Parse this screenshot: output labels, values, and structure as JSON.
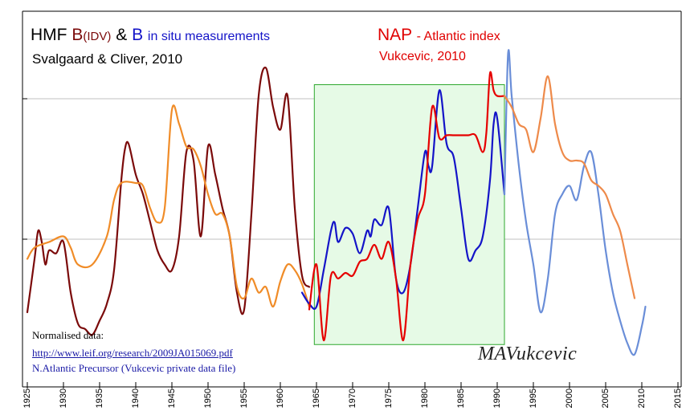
{
  "title": {
    "hmf": "HMF",
    "b_idv_prefix": "B",
    "b_idv_sub": "(IDV)",
    "amp": "&",
    "b": "B",
    "in_situ": "in situ measurements",
    "credit_left": "Svalgaard & Cliver, 2010",
    "nap": "NAP",
    "nap_suffix": "- Atlantic index",
    "credit_right": "Vukcevic, 2010"
  },
  "notes": {
    "line1": "Normalised data:",
    "line2": "http://www.leif.org/research/2009JA015069.pdf",
    "line3": "N.Atlantic Precursor (Vukcevic private data file)"
  },
  "signature": "MAVukcevic",
  "colors": {
    "hmf_idv": "#7b0a0a",
    "nap_early": "#f08c28",
    "nap_late": "#ee8a4a",
    "nap_window": "#e60000",
    "b_insitu": "#1414c8",
    "b_late": "#6a8ed8",
    "window_fill": "#e6fae6",
    "window_border": "#2ea82e",
    "gridline": "#c0c0c0"
  },
  "chart_data": {
    "type": "line",
    "xlim": [
      1925,
      2015
    ],
    "ylim": [
      0,
      100
    ],
    "x_ticks": [
      "1925",
      "1930",
      "1935",
      "1940",
      "1945",
      "1950",
      "1955",
      "1960",
      "1965",
      "1970",
      "1975",
      "1980",
      "1985",
      "1990",
      "1995",
      "2000",
      "2005",
      "2010",
      "2015"
    ],
    "gridlines_y": [
      79,
      29
    ],
    "grid": "horizontal",
    "highlight_window": {
      "x": [
        1964.7,
        1991.0
      ],
      "y": [
        -8.5,
        84
      ]
    },
    "series": [
      {
        "key": "hmf_idv",
        "x": [
          1925,
          1926,
          1926.5,
          1927,
          1927.5,
          1928,
          1929,
          1930,
          1931,
          1932,
          1933,
          1934,
          1935,
          1936,
          1937,
          1938,
          1938.5,
          1939,
          1940,
          1941,
          1942,
          1943,
          1944,
          1945,
          1946,
          1947,
          1948,
          1949,
          1950,
          1951,
          1952,
          1953,
          1954,
          1955,
          1956,
          1957,
          1958,
          1959,
          1960,
          1961,
          1962,
          1963,
          1964
        ],
        "y": [
          3,
          22,
          32,
          28,
          20,
          25,
          24,
          28,
          10,
          -1,
          -3,
          -5,
          0,
          6,
          18,
          50,
          61,
          63,
          52,
          45,
          35,
          25,
          20,
          18,
          30,
          60,
          57,
          30,
          62,
          52,
          40,
          30,
          10,
          4,
          38,
          80,
          90,
          76,
          68,
          80,
          40,
          16,
          12
        ]
      },
      {
        "key": "nap_early",
        "x": [
          1925,
          1926,
          1928,
          1930,
          1931,
          1932,
          1934,
          1936,
          1937,
          1938,
          1940,
          1941,
          1942,
          1943,
          1944,
          1945,
          1946,
          1947,
          1948,
          1949,
          1950,
          1951,
          1952,
          1953,
          1954,
          1955,
          1956,
          1957,
          1958,
          1959,
          1960,
          1961,
          1962,
          1963,
          1964
        ],
        "y": [
          22,
          26,
          28,
          30,
          26,
          20,
          20,
          30,
          43,
          49,
          49,
          48,
          40,
          35,
          40,
          75,
          70,
          62,
          61,
          55,
          45,
          38,
          38,
          30,
          12,
          8,
          15,
          10,
          12,
          5,
          14,
          20,
          18,
          13,
          5
        ]
      },
      {
        "key": "b_insitu",
        "x": [
          1963,
          1964,
          1965,
          1966,
          1967,
          1967.5,
          1968,
          1969,
          1970,
          1971,
          1972,
          1972.5,
          1973,
          1974,
          1975,
          1976,
          1977,
          1978,
          1979,
          1980,
          1980.5,
          1981,
          1982,
          1983,
          1984,
          1985,
          1986,
          1987,
          1988,
          1989,
          1989.5,
          1990,
          1991
        ],
        "y": [
          10,
          6,
          5,
          18,
          32,
          35,
          28,
          33,
          31,
          24,
          32,
          30,
          36,
          34,
          40,
          15,
          10,
          20,
          40,
          60,
          55,
          55,
          82,
          63,
          58,
          40,
          22,
          25,
          30,
          50,
          70,
          72,
          45
        ]
      },
      {
        "key": "nap_window",
        "x": [
          1964,
          1965,
          1966,
          1967,
          1968,
          1969,
          1970,
          1971,
          1972,
          1973,
          1974,
          1975,
          1976,
          1977,
          1978,
          1979,
          1980,
          1981,
          1982,
          1983,
          1984,
          1985,
          1986,
          1987,
          1988,
          1988.5,
          1989,
          1989.5,
          1990,
          1991
        ],
        "y": [
          4,
          20,
          -7,
          16,
          15,
          17,
          16,
          21,
          22,
          27,
          22,
          28,
          15,
          -7,
          20,
          36,
          45,
          76,
          65,
          66,
          66,
          66,
          66,
          66,
          60,
          67,
          88,
          82,
          80,
          80
        ]
      },
      {
        "key": "b_late",
        "x": [
          1991,
          1991.5,
          1992,
          1993,
          1994,
          1995,
          1996,
          1997,
          1998,
          1999,
          2000,
          2001,
          2002,
          2003,
          2004,
          2005,
          2006,
          2007,
          2008,
          2009,
          2010,
          2010.5
        ],
        "y": [
          45,
          95,
          80,
          55,
          35,
          20,
          3,
          15,
          38,
          45,
          48,
          43,
          55,
          60,
          45,
          25,
          10,
          0,
          -8,
          -12,
          -2,
          5
        ]
      },
      {
        "key": "nap_late",
        "x": [
          1991,
          1992,
          1993,
          1994,
          1995,
          1996,
          1997,
          1998,
          1999,
          2000,
          2001,
          2002,
          2003,
          2004,
          2005,
          2006,
          2007,
          2008,
          2009
        ],
        "y": [
          80,
          76,
          70,
          68,
          60,
          72,
          87,
          70,
          60,
          57,
          57,
          56,
          50,
          48,
          45,
          38,
          32,
          20,
          8
        ]
      }
    ]
  }
}
